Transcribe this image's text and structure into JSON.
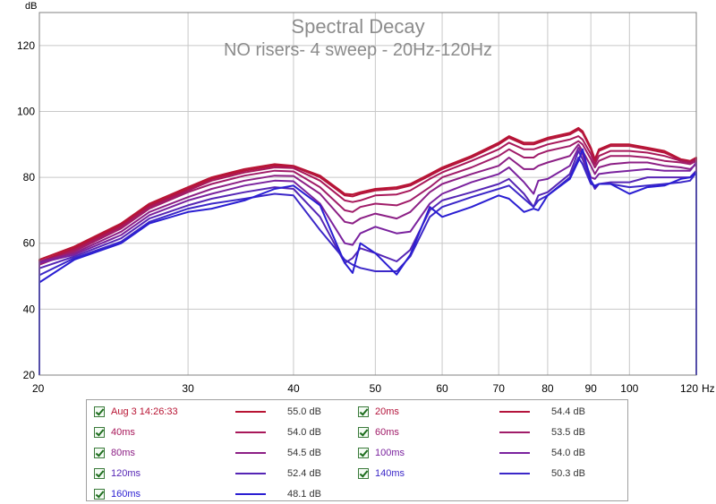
{
  "chart_data": {
    "type": "line",
    "title": "Spectral Decay",
    "subtitle": "NO risers- 4 sweep - 20Hz-120Hz",
    "ylabel": "dB",
    "xlabel": "Hz",
    "x_scale": "log",
    "xlim": [
      20,
      120
    ],
    "ylim": [
      20,
      130
    ],
    "x_ticks": [
      20,
      30,
      40,
      50,
      60,
      70,
      80,
      90,
      100,
      120
    ],
    "y_ticks": [
      20,
      40,
      60,
      80,
      100,
      120
    ],
    "grid": true,
    "x": [
      20,
      22,
      25,
      27,
      30,
      32,
      35,
      38,
      40,
      43,
      46,
      47,
      48,
      50,
      53,
      55,
      58,
      60,
      65,
      70,
      72,
      75,
      77,
      78,
      80,
      85,
      87,
      88,
      90,
      91,
      92,
      95,
      100,
      105,
      110,
      115,
      118,
      120
    ],
    "series": [
      {
        "name": "Aug 3 14:26:33",
        "color": "#b81433",
        "values": [
          55.0,
          59,
          66,
          72,
          77,
          80,
          82.5,
          84,
          83.5,
          80.5,
          75,
          74.8,
          75.5,
          76.5,
          77,
          78,
          81,
          83,
          86.5,
          90.5,
          92.5,
          90.5,
          90.5,
          91,
          92,
          93.5,
          95,
          94,
          89,
          85.5,
          88.5,
          90,
          90,
          89,
          88,
          85.5,
          85,
          86
        ]
      },
      {
        "name": "20ms",
        "color": "#b4143c",
        "values": [
          54.4,
          58.5,
          65.5,
          71.5,
          76.5,
          79.5,
          82,
          83.5,
          83.3,
          80,
          74.5,
          74.2,
          75,
          76,
          76.5,
          77.5,
          80.5,
          82.5,
          86,
          90,
          92,
          90,
          90,
          90.5,
          91.5,
          93,
          94.5,
          93.5,
          88.5,
          85,
          88,
          89.5,
          89.5,
          88.5,
          87.5,
          85.2,
          84.8,
          85.8
        ]
      },
      {
        "name": "40ms",
        "color": "#a8185a",
        "values": [
          54.0,
          58,
          65,
          71,
          76,
          79,
          81.5,
          83,
          82.8,
          79,
          73,
          72.5,
          73,
          74.5,
          74.8,
          76,
          79.5,
          81.5,
          85,
          88.5,
          90.5,
          88.5,
          88.5,
          89,
          90,
          91.5,
          92.5,
          91.5,
          87,
          84,
          86.5,
          88,
          88,
          87.5,
          86.5,
          85,
          84.5,
          85.5
        ]
      },
      {
        "name": "60ms",
        "color": "#a01c69",
        "values": [
          53.5,
          57.5,
          64.5,
          70.5,
          75.5,
          78,
          80.5,
          82,
          81.8,
          77,
          70,
          69.5,
          71,
          72,
          71.5,
          73,
          77,
          80,
          83,
          86.5,
          88.5,
          86,
          86,
          87,
          88,
          89.5,
          91,
          90,
          85.5,
          83,
          85,
          86.5,
          86.5,
          86,
          85,
          84.5,
          84,
          85
        ]
      },
      {
        "name": "80ms",
        "color": "#8c1f85",
        "values": [
          54.5,
          57,
          63.5,
          69.5,
          74,
          76.5,
          79,
          80.5,
          80.4,
          75,
          66.5,
          66,
          67.5,
          69,
          67.5,
          69.5,
          75.5,
          78,
          81,
          83.5,
          86,
          82.5,
          82.5,
          83.5,
          84.5,
          86.5,
          90,
          88,
          83.5,
          81,
          83,
          84,
          84.5,
          84.5,
          83.5,
          83,
          82.5,
          84
        ]
      },
      {
        "name": "100ms",
        "color": "#7a229e",
        "values": [
          54.0,
          56.5,
          62.5,
          68.5,
          73,
          75,
          77.5,
          79,
          78.8,
          72,
          60,
          59.5,
          63,
          65,
          63,
          63.5,
          72,
          75,
          78.5,
          81,
          83,
          78.5,
          75,
          79,
          79.5,
          83.5,
          89,
          87,
          80,
          79.5,
          81,
          81.5,
          82,
          82.5,
          82,
          82,
          82,
          84.5
        ]
      },
      {
        "name": "120ms",
        "color": "#5525b5",
        "values": [
          52.4,
          56,
          61.5,
          67.5,
          71.5,
          73.5,
          75.5,
          77,
          76.5,
          68,
          54,
          55.5,
          58.5,
          57,
          54.5,
          58,
          70,
          73,
          75.5,
          78,
          79.5,
          75,
          71,
          74.5,
          75.5,
          81,
          88,
          85.5,
          79,
          76.5,
          78,
          78.5,
          78.5,
          80,
          80,
          80,
          80,
          82
        ]
      },
      {
        "name": "140ms",
        "color": "#3b27c8",
        "values": [
          50.3,
          55.5,
          60.5,
          66.5,
          70.5,
          72,
          73.5,
          75,
          74.5,
          64,
          55,
          53.5,
          52.5,
          51.5,
          51.5,
          56,
          68,
          71,
          74,
          76.5,
          77.5,
          73.5,
          71,
          73,
          74.5,
          80,
          86,
          84,
          78,
          77.5,
          78,
          78,
          77,
          77.5,
          78,
          78.5,
          79,
          81.5
        ]
      },
      {
        "name": "160ms",
        "color": "#2a1ed2",
        "values": [
          48.1,
          55,
          60,
          66,
          69.5,
          70.5,
          73,
          76.5,
          77.5,
          71.5,
          54,
          51,
          60,
          57,
          50.5,
          56.5,
          71,
          68,
          71,
          74.5,
          73.5,
          69.5,
          70.5,
          70,
          74.5,
          79.5,
          85,
          88.5,
          79,
          77,
          78,
          78,
          75,
          77,
          77.5,
          79.5,
          80,
          81.5
        ]
      }
    ]
  },
  "legend": {
    "items": [
      {
        "name": "Aug 3 14:26:33",
        "value": "55.0 dB",
        "color": "#b81433",
        "text_color": "#b81433"
      },
      {
        "name": "20ms",
        "value": "54.4 dB",
        "color": "#b4143c",
        "text_color": "#b4143c"
      },
      {
        "name": "40ms",
        "value": "54.0 dB",
        "color": "#a8185a",
        "text_color": "#a8185a"
      },
      {
        "name": "60ms",
        "value": "53.5 dB",
        "color": "#a01c69",
        "text_color": "#a01c69"
      },
      {
        "name": "80ms",
        "value": "54.5 dB",
        "color": "#8c1f85",
        "text_color": "#8c1f85"
      },
      {
        "name": "100ms",
        "value": "54.0 dB",
        "color": "#7a229e",
        "text_color": "#7a229e"
      },
      {
        "name": "120ms",
        "value": "52.4 dB",
        "color": "#5525b5",
        "text_color": "#5525b5"
      },
      {
        "name": "140ms",
        "value": "50.3 dB",
        "color": "#3b27c8",
        "text_color": "#3b27c8"
      },
      {
        "name": "160ms",
        "value": "48.1 dB",
        "color": "#2a1ed2",
        "text_color": "#2a1ed2"
      }
    ]
  },
  "colors": {
    "grid": "#c8c8c8",
    "plot_frame": "#808080",
    "title": "#8c8c8c",
    "axis_text": "#000000"
  }
}
